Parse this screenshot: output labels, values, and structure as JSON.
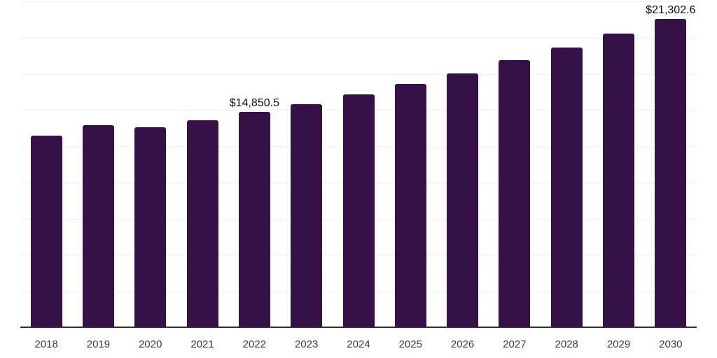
{
  "chart_data": {
    "type": "bar",
    "title": "",
    "xlabel": "",
    "ylabel": "",
    "categories": [
      "2018",
      "2019",
      "2020",
      "2021",
      "2022",
      "2023",
      "2024",
      "2025",
      "2026",
      "2027",
      "2028",
      "2029",
      "2030"
    ],
    "values": [
      13250,
      13950,
      13800,
      14300,
      14850.5,
      15400,
      16100,
      16800,
      17550,
      18450,
      19300,
      20300,
      21302.6
    ],
    "value_labels": [
      {
        "category": "2022",
        "text": "$14,850.5"
      },
      {
        "category": "2030",
        "text": "$21,302.6"
      }
    ],
    "ylim": [
      0,
      22500
    ],
    "grid_interval": 2500,
    "grid": true,
    "y_axis_tick_labels_visible": false,
    "legend_position": "none",
    "bar_color": "#351148",
    "grid_color": "#efefef",
    "axis_line_color": "#303030",
    "tick_label_color": "#3a3a3a",
    "value_label_color": "#0d0d0d",
    "background_color": "#ffffff"
  }
}
